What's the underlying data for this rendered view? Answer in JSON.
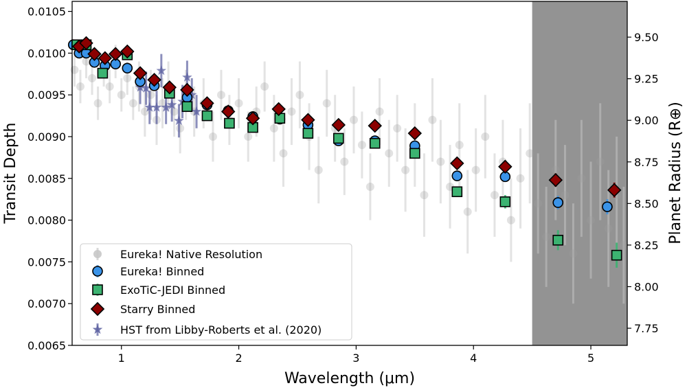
{
  "chart_data": {
    "type": "scatter",
    "xlabel": "Wavelength (μm)",
    "ylabel": "Transit Depth",
    "y2label": "Planet Radius (R⊕)",
    "xlim": [
      0.58,
      5.31
    ],
    "ylim": [
      0.0065,
      0.01062
    ],
    "y2lim": [
      7.647,
      9.715
    ],
    "xticks": [
      1,
      2,
      3,
      4,
      5
    ],
    "yticks": [
      "0.0065",
      "0.0070",
      "0.0075",
      "0.0080",
      "0.0085",
      "0.0090",
      "0.0095",
      "0.0100",
      "0.0105"
    ],
    "y2ticks": [
      "7.75",
      "8.00",
      "8.25",
      "8.50",
      "8.75",
      "9.00",
      "9.25",
      "9.50"
    ],
    "grid": false,
    "legend_placement": "lower-left",
    "shaded_region": {
      "x_from": 4.5,
      "x_to": 5.31,
      "color": "#808080"
    },
    "series": [
      {
        "name": "Eureka! Native Resolution",
        "marker": "circle",
        "color": "#b0b0b0",
        "points": [
          [
            0.6,
            0.0098,
            0.0002
          ],
          [
            0.65,
            0.0096,
            0.0002
          ],
          [
            0.7,
            0.0099,
            0.0002
          ],
          [
            0.75,
            0.0097,
            0.0002
          ],
          [
            0.8,
            0.0094,
            0.0002
          ],
          [
            0.85,
            0.0098,
            0.0002
          ],
          [
            0.9,
            0.0096,
            0.0002
          ],
          [
            0.95,
            0.0099,
            0.0002
          ],
          [
            1.0,
            0.0095,
            0.0002
          ],
          [
            1.05,
            0.0097,
            0.0002
          ],
          [
            1.1,
            0.0094,
            0.0002
          ],
          [
            1.15,
            0.0096,
            0.0003
          ],
          [
            1.2,
            0.0093,
            0.0003
          ],
          [
            1.25,
            0.0095,
            0.0003
          ],
          [
            1.3,
            0.0092,
            0.0003
          ],
          [
            1.35,
            0.0094,
            0.0003
          ],
          [
            1.4,
            0.0096,
            0.0003
          ],
          [
            1.45,
            0.0093,
            0.0003
          ],
          [
            1.5,
            0.0091,
            0.0003
          ],
          [
            1.55,
            0.0095,
            0.0003
          ],
          [
            1.62,
            0.0093,
            0.0003
          ],
          [
            1.7,
            0.0094,
            0.0003
          ],
          [
            1.78,
            0.009,
            0.0003
          ],
          [
            1.85,
            0.0095,
            0.0003
          ],
          [
            1.92,
            0.0092,
            0.0003
          ],
          [
            2.0,
            0.0094,
            0.0003
          ],
          [
            2.08,
            0.009,
            0.0003
          ],
          [
            2.15,
            0.0093,
            0.0003
          ],
          [
            2.22,
            0.0096,
            0.0003
          ],
          [
            2.3,
            0.0091,
            0.0004
          ],
          [
            2.38,
            0.0088,
            0.0004
          ],
          [
            2.45,
            0.0093,
            0.0004
          ],
          [
            2.52,
            0.0095,
            0.0004
          ],
          [
            2.6,
            0.009,
            0.0004
          ],
          [
            2.68,
            0.0086,
            0.0004
          ],
          [
            2.75,
            0.0094,
            0.0004
          ],
          [
            2.82,
            0.0091,
            0.0004
          ],
          [
            2.9,
            0.0087,
            0.0004
          ],
          [
            2.98,
            0.0092,
            0.0004
          ],
          [
            3.05,
            0.0089,
            0.0004
          ],
          [
            3.12,
            0.0084,
            0.0004
          ],
          [
            3.2,
            0.0093,
            0.0004
          ],
          [
            3.28,
            0.0088,
            0.0004
          ],
          [
            3.35,
            0.0091,
            0.0004
          ],
          [
            3.42,
            0.0086,
            0.0005
          ],
          [
            3.5,
            0.0089,
            0.0005
          ],
          [
            3.58,
            0.0083,
            0.0005
          ],
          [
            3.65,
            0.0092,
            0.0005
          ],
          [
            3.72,
            0.0087,
            0.0005
          ],
          [
            3.8,
            0.0084,
            0.0005
          ],
          [
            3.88,
            0.0089,
            0.0005
          ],
          [
            3.95,
            0.0081,
            0.0005
          ],
          [
            4.02,
            0.0086,
            0.0005
          ],
          [
            4.1,
            0.009,
            0.0005
          ],
          [
            4.18,
            0.0083,
            0.0005
          ],
          [
            4.25,
            0.0087,
            0.0005
          ],
          [
            4.32,
            0.008,
            0.0005
          ],
          [
            4.4,
            0.0085,
            0.0006
          ],
          [
            4.48,
            0.0088,
            0.0006
          ],
          [
            4.55,
            0.0082,
            0.0006
          ],
          [
            4.62,
            0.0078,
            0.0006
          ],
          [
            4.7,
            0.0086,
            0.0006
          ],
          [
            4.78,
            0.0083,
            0.0006
          ],
          [
            4.85,
            0.0076,
            0.0006
          ],
          [
            4.92,
            0.0085,
            0.0007
          ],
          [
            5.0,
            0.008,
            0.0007
          ],
          [
            5.08,
            0.0087,
            0.0007
          ],
          [
            5.15,
            0.0079,
            0.0007
          ],
          [
            5.22,
            0.0083,
            0.0007
          ],
          [
            5.28,
            0.0077,
            0.0007
          ]
        ]
      },
      {
        "name": "HST from Libby-Roberts et al. (2020)",
        "marker": "star",
        "color": "#5b5fa0",
        "points": [
          [
            1.16,
            0.00959,
            0.0002
          ],
          [
            1.21,
            0.00958,
            0.0002
          ],
          [
            1.24,
            0.00935,
            0.0002
          ],
          [
            1.3,
            0.00935,
            0.0002
          ],
          [
            1.34,
            0.00979,
            0.0002
          ],
          [
            1.38,
            0.00935,
            0.0002
          ],
          [
            1.43,
            0.00938,
            0.0002
          ],
          [
            1.49,
            0.00919,
            0.0002
          ],
          [
            1.52,
            0.00942,
            0.0002
          ],
          [
            1.56,
            0.00971,
            0.0002
          ],
          [
            1.6,
            0.0095,
            0.0002
          ],
          [
            1.64,
            0.0093,
            0.0002
          ]
        ]
      },
      {
        "name": "Eureka! Binned",
        "marker": "circle",
        "color": "#3a93e8",
        "points": [
          [
            0.59,
            0.0101,
            3e-05
          ],
          [
            0.64,
            0.01,
            3e-05
          ],
          [
            0.7,
            0.01,
            3e-05
          ],
          [
            0.77,
            0.00989,
            3e-05
          ],
          [
            0.86,
            0.00985,
            3e-05
          ],
          [
            0.95,
            0.00987,
            3e-05
          ],
          [
            1.05,
            0.00982,
            3e-05
          ],
          [
            1.16,
            0.00966,
            3e-05
          ],
          [
            1.28,
            0.00961,
            3e-05
          ],
          [
            1.41,
            0.00958,
            3e-05
          ],
          [
            1.56,
            0.00947,
            3e-05
          ],
          [
            1.73,
            0.00938,
            3e-05
          ],
          [
            1.91,
            0.00931,
            3e-05
          ],
          [
            2.12,
            0.00924,
            3e-05
          ],
          [
            2.35,
            0.00921,
            3e-05
          ],
          [
            2.59,
            0.00914,
            3e-05
          ],
          [
            2.85,
            0.00895,
            3e-05
          ],
          [
            3.16,
            0.00895,
            4e-05
          ],
          [
            3.5,
            0.00889,
            4e-05
          ],
          [
            3.86,
            0.00853,
            5e-05
          ],
          [
            4.27,
            0.00852,
            6e-05
          ],
          [
            4.72,
            0.00821,
            8e-05
          ],
          [
            5.14,
            0.00816,
            9e-05
          ]
        ]
      },
      {
        "name": "ExoTiC-JEDI Binned",
        "marker": "square",
        "color": "#3cb371",
        "points": [
          [
            0.62,
            0.0101,
            3e-05
          ],
          [
            0.7,
            0.0101,
            3e-05
          ],
          [
            0.84,
            0.00976,
            3e-05
          ],
          [
            1.05,
            0.00998,
            3e-05
          ],
          [
            1.41,
            0.00952,
            3e-05
          ],
          [
            1.56,
            0.00936,
            3e-05
          ],
          [
            1.73,
            0.00925,
            3e-05
          ],
          [
            1.92,
            0.00916,
            3e-05
          ],
          [
            2.12,
            0.00911,
            3e-05
          ],
          [
            2.35,
            0.00922,
            3e-05
          ],
          [
            2.59,
            0.00904,
            3e-05
          ],
          [
            2.85,
            0.00898,
            3e-05
          ],
          [
            3.16,
            0.00892,
            4e-05
          ],
          [
            3.5,
            0.0088,
            5e-05
          ],
          [
            3.86,
            0.00834,
            6e-05
          ],
          [
            4.27,
            0.00822,
            8e-05
          ],
          [
            4.72,
            0.00776,
            0.00012
          ],
          [
            5.22,
            0.00758,
            0.00015
          ]
        ]
      },
      {
        "name": "Starry Binned",
        "marker": "diamond",
        "color": "#8b0000",
        "points": [
          [
            0.64,
            0.01008,
            3e-05
          ],
          [
            0.7,
            0.01012,
            3e-05
          ],
          [
            0.77,
            0.00999,
            3e-05
          ],
          [
            0.86,
            0.00994,
            3e-05
          ],
          [
            0.95,
            0.00999,
            3e-05
          ],
          [
            1.05,
            0.01002,
            3e-05
          ],
          [
            1.16,
            0.00976,
            3e-05
          ],
          [
            1.28,
            0.00968,
            3e-05
          ],
          [
            1.41,
            0.00959,
            3e-05
          ],
          [
            1.56,
            0.00956,
            3e-05
          ],
          [
            1.73,
            0.0094,
            3e-05
          ],
          [
            1.91,
            0.0093,
            3e-05
          ],
          [
            2.12,
            0.00922,
            3e-05
          ],
          [
            2.34,
            0.00933,
            3e-05
          ],
          [
            2.59,
            0.0092,
            3e-05
          ],
          [
            2.85,
            0.00914,
            3e-05
          ],
          [
            3.16,
            0.00913,
            4e-05
          ],
          [
            3.5,
            0.00904,
            4e-05
          ],
          [
            3.86,
            0.00868,
            4e-05
          ],
          [
            4.27,
            0.00864,
            5e-05
          ],
          [
            4.7,
            0.00848,
            8e-05
          ],
          [
            5.2,
            0.00836,
            9e-05
          ]
        ]
      }
    ],
    "legend": [
      {
        "label": "Eureka! Native Resolution",
        "marker": "circle",
        "color": "#c8c8c8"
      },
      {
        "label": "Eureka! Binned",
        "marker": "circle",
        "color": "#3a93e8"
      },
      {
        "label": "ExoTiC-JEDI Binned",
        "marker": "square",
        "color": "#3cb371"
      },
      {
        "label": "Starry Binned",
        "marker": "diamond",
        "color": "#8b0000"
      },
      {
        "label": "HST from Libby-Roberts et al. (2020)",
        "marker": "star",
        "color": "#5b5fa0"
      }
    ]
  }
}
